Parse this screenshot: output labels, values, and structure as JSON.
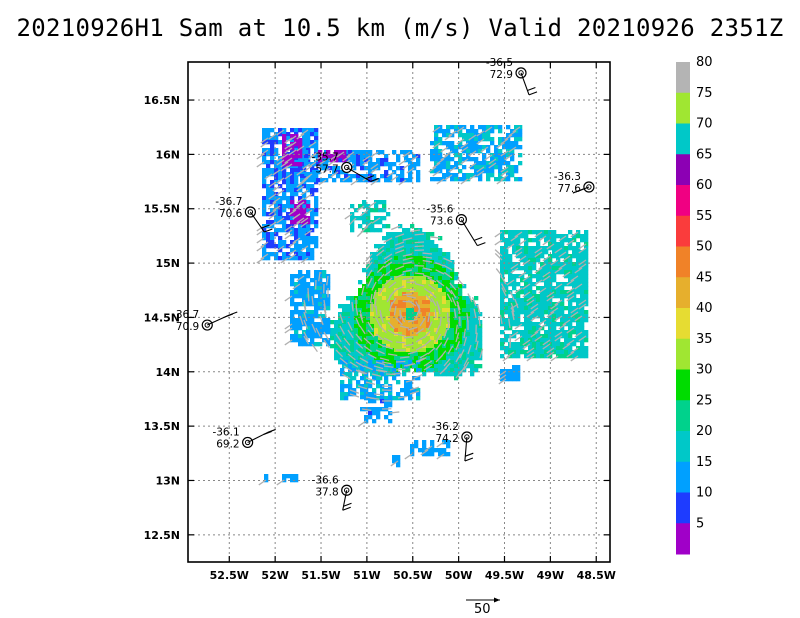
{
  "title": "20210926H1 Sam at 10.5 km (m/s) Valid 20210926 2351Z",
  "map": {
    "lon_range": [
      -52.95,
      -48.35
    ],
    "lat_range": [
      12.25,
      16.85
    ],
    "x_ticks": [
      {
        "lon": -52.5,
        "label": "52.5W"
      },
      {
        "lon": -52.0,
        "label": "52W"
      },
      {
        "lon": -51.5,
        "label": "51.5W"
      },
      {
        "lon": -51.0,
        "label": "51W"
      },
      {
        "lon": -50.5,
        "label": "50.5W"
      },
      {
        "lon": -50.0,
        "label": "50W"
      },
      {
        "lon": -49.5,
        "label": "49.5W"
      },
      {
        "lon": -49.0,
        "label": "49W"
      },
      {
        "lon": -48.5,
        "label": "48.5W"
      }
    ],
    "y_ticks": [
      {
        "lat": 16.5,
        "label": "16.5N"
      },
      {
        "lat": 16.0,
        "label": "16N"
      },
      {
        "lat": 15.5,
        "label": "15.5N"
      },
      {
        "lat": 15.0,
        "label": "15N"
      },
      {
        "lat": 14.5,
        "label": "14.5N"
      },
      {
        "lat": 14.0,
        "label": "14N"
      },
      {
        "lat": 13.5,
        "label": "13.5N"
      },
      {
        "lat": 13.0,
        "label": "13N"
      },
      {
        "lat": 12.5,
        "label": "12.5N"
      }
    ],
    "grid": "dotted",
    "storm_center": {
      "lon": -50.55,
      "lat": 14.55
    }
  },
  "colorbar": {
    "labels": [
      "5",
      "10",
      "15",
      "20",
      "25",
      "30",
      "35",
      "40",
      "45",
      "50",
      "55",
      "60",
      "65",
      "70",
      "75",
      "80"
    ],
    "colors": [
      "#a000c8",
      "#1e3cff",
      "#00a0ff",
      "#00c8c8",
      "#00d28c",
      "#00dc00",
      "#a0e632",
      "#e6dc32",
      "#e6af2d",
      "#f08228",
      "#fa3c3c",
      "#f00082",
      "#8c00b4",
      "#00c8c8",
      "#a0e632",
      "#b4b4b4"
    ]
  },
  "dropsondes": [
    {
      "lon": -49.32,
      "lat": 16.75,
      "label_top": "-36.5",
      "label_bot": "72.9"
    },
    {
      "lon": -51.22,
      "lat": 15.88,
      "label_top": "-35.7",
      "label_bot": "57.7"
    },
    {
      "lon": -48.58,
      "lat": 15.7,
      "label_top": "-36.3",
      "label_bot": "77.6"
    },
    {
      "lon": -52.27,
      "lat": 15.47,
      "label_top": "-36.7",
      "label_bot": "70.6"
    },
    {
      "lon": -49.97,
      "lat": 15.4,
      "label_top": "-35.6",
      "label_bot": "73.6"
    },
    {
      "lon": -52.74,
      "lat": 14.43,
      "label_top": "36.7",
      "label_bot": "70.9"
    },
    {
      "lon": -52.3,
      "lat": 13.35,
      "label_top": "-36.1",
      "label_bot": "69.2"
    },
    {
      "lon": -49.91,
      "lat": 13.4,
      "label_top": "-36.2",
      "label_bot": "74.2"
    },
    {
      "lon": -51.22,
      "lat": 12.91,
      "label_top": "-36.6",
      "label_bot": "37.8"
    }
  ],
  "reference_vector": {
    "label": "50"
  }
}
